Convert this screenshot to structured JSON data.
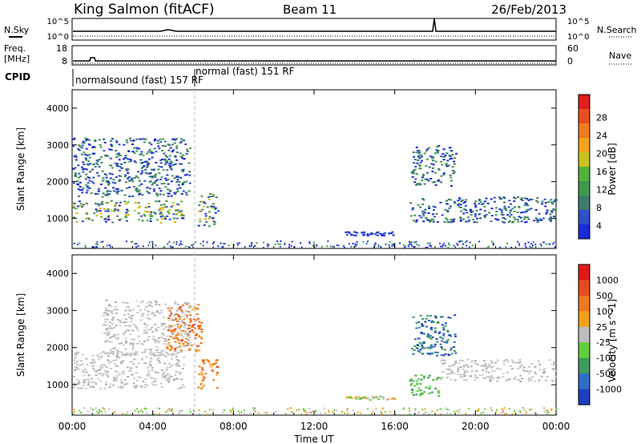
{
  "header": {
    "station": "King Salmon (fitACF)",
    "beam": "Beam 11",
    "date": "26/Feb/2013"
  },
  "panels": {
    "nsky_label": "N.Sky",
    "nsky_ticks": [
      "10^5",
      "10^0"
    ],
    "nsearch_label": "N.Search",
    "nsearch_ticks": [
      "10^5",
      "10^0"
    ],
    "freq_label_1": "Freq.",
    "freq_label_2": "[MHz]",
    "freq_ticks": [
      "18",
      "8"
    ],
    "nave_label": "Nave",
    "nave_ticks": [
      "60",
      "0"
    ],
    "cpid_label": "CPID",
    "cpid_entries": [
      "normalsound (fast) 157 RF",
      "normal (fast) 151 RF"
    ]
  },
  "chart_data": [
    {
      "type": "heatmap",
      "name_label": "Power [dB]",
      "ylabel": "Slant Range [km]",
      "ylim": [
        180,
        4500
      ],
      "yticks": [
        "1000",
        "2000",
        "3000",
        "4000"
      ],
      "colorbar_ticks": [
        "4",
        "8",
        "12",
        "16",
        "20",
        "24",
        "28"
      ],
      "colorbar_colors": [
        "#1a2ad8",
        "#2f4fc8",
        "#3f7a6e",
        "#3f9a4c",
        "#4fb33a",
        "#c8c21d",
        "#f3a21b",
        "#f07a1e",
        "#e94d1f",
        "#e01d1d"
      ],
      "echo_regions": [
        {
          "t0": 0.0,
          "t1": 5.5,
          "r0": 900,
          "r1": 1500,
          "level": "strong"
        },
        {
          "t0": 0.0,
          "t1": 5.8,
          "r0": 1600,
          "r1": 3200,
          "level": "moderate"
        },
        {
          "t0": 6.2,
          "t1": 7.2,
          "r0": 800,
          "r1": 1700,
          "level": "strong"
        },
        {
          "t0": 13.5,
          "t1": 16.0,
          "r0": 550,
          "r1": 650,
          "level": "weak"
        },
        {
          "t0": 16.7,
          "t1": 24.0,
          "r0": 900,
          "r1": 1600,
          "level": "moderate"
        },
        {
          "t0": 16.8,
          "t1": 19.0,
          "r0": 1900,
          "r1": 3000,
          "level": "moderate"
        }
      ]
    },
    {
      "type": "heatmap",
      "name_label": "Velocity [m s^-1]",
      "ylabel": "Slant Range [km]",
      "ylim": [
        180,
        4500
      ],
      "yticks": [
        "1000",
        "2000",
        "3000",
        "4000"
      ],
      "colorbar_ticks": [
        "1000",
        "500",
        "100",
        "25",
        "-25",
        "-100",
        "-500",
        "-1000"
      ],
      "colorbar_colors": [
        "#1c3fbf",
        "#2f6ec8",
        "#3e9a5f",
        "#5fcf3a",
        "#bdbdbd",
        "#f2a01c",
        "#f07820",
        "#e84a1f",
        "#e21818"
      ],
      "echo_regions": [
        {
          "t0": 0.0,
          "t1": 5.5,
          "r0": 900,
          "r1": 1900,
          "level": "ground"
        },
        {
          "t0": 1.5,
          "t1": 5.8,
          "r0": 1800,
          "r1": 3300,
          "level": "ground"
        },
        {
          "t0": 6.2,
          "t1": 7.2,
          "r0": 900,
          "r1": 1700,
          "level": "away"
        },
        {
          "t0": 4.6,
          "t1": 6.4,
          "r0": 1900,
          "r1": 3200,
          "level": "away"
        },
        {
          "t0": 13.5,
          "t1": 16.0,
          "r0": 600,
          "r1": 700,
          "level": "mixed"
        },
        {
          "t0": 16.7,
          "t1": 18.2,
          "r0": 700,
          "r1": 1300,
          "level": "toward"
        },
        {
          "t0": 18.2,
          "t1": 24.0,
          "r0": 1100,
          "r1": 1700,
          "level": "ground"
        },
        {
          "t0": 16.8,
          "t1": 19.0,
          "r0": 1800,
          "r1": 2900,
          "level": "toward_blue"
        }
      ]
    }
  ],
  "xaxis": {
    "ticks": [
      "00:00",
      "04:00",
      "08:00",
      "12:00",
      "16:00",
      "20:00",
      "00:00"
    ],
    "label": "Time UT",
    "xlim_hours": [
      0,
      24
    ]
  }
}
